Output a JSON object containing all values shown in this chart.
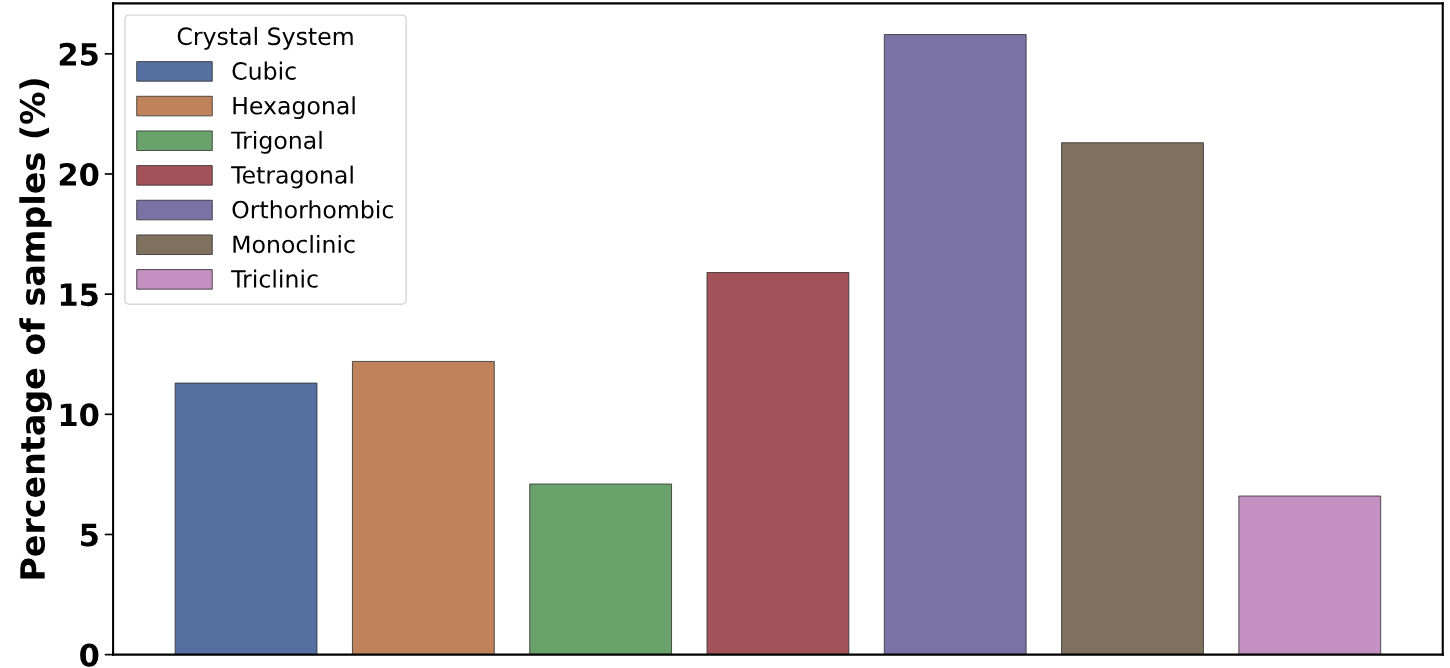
{
  "chart_data": {
    "type": "bar",
    "ylabel": "Percentage of samples (%)",
    "legend_title": "Crystal System",
    "categories": [
      null,
      null,
      null,
      null,
      null,
      null,
      null
    ],
    "series": [
      {
        "name": "Cubic",
        "color": "#5570a0",
        "values": [
          11.3,
          null,
          null,
          null,
          null,
          null,
          null
        ]
      },
      {
        "name": "Hexagonal",
        "color": "#c0825a",
        "values": [
          null,
          12.2,
          null,
          null,
          null,
          null,
          null
        ]
      },
      {
        "name": "Trigonal",
        "color": "#6aa26b",
        "values": [
          null,
          null,
          7.1,
          null,
          null,
          null,
          null
        ]
      },
      {
        "name": "Tetragonal",
        "color": "#a3525a",
        "values": [
          null,
          null,
          null,
          15.9,
          null,
          null,
          null
        ]
      },
      {
        "name": "Orthorhombic",
        "color": "#7a72a5",
        "values": [
          null,
          null,
          null,
          null,
          25.8,
          null,
          null
        ]
      },
      {
        "name": "Monoclinic",
        "color": "#80705e",
        "values": [
          null,
          null,
          null,
          null,
          null,
          21.3,
          null
        ]
      },
      {
        "name": "Triclinic",
        "color": "#c490c2",
        "values": [
          null,
          null,
          null,
          null,
          null,
          null,
          6.6
        ]
      }
    ],
    "ylim": [
      0,
      27.1
    ],
    "yticks": [
      0,
      5,
      10,
      15,
      20,
      25
    ],
    "grid": false,
    "legend": "top left",
    "tick_labels": "y"
  }
}
